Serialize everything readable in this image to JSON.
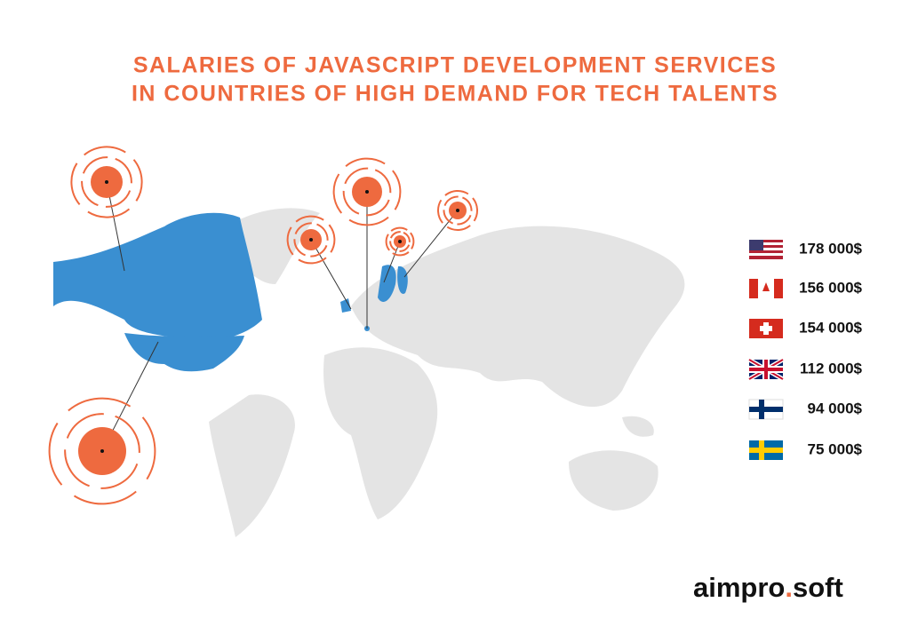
{
  "title": [
    "SALARIES OF JAVASCRIPT DEVELOPMENT SERVICES",
    "IN COUNTRIES OF HIGH DEMAND FOR TECH TALENTS"
  ],
  "salaries": [
    "178 000$",
    "156 000$",
    "154 000$",
    "112 000$",
    "94 000$",
    "75 000$"
  ],
  "logo": [
    "aimpro",
    ".",
    "soft"
  ]
}
